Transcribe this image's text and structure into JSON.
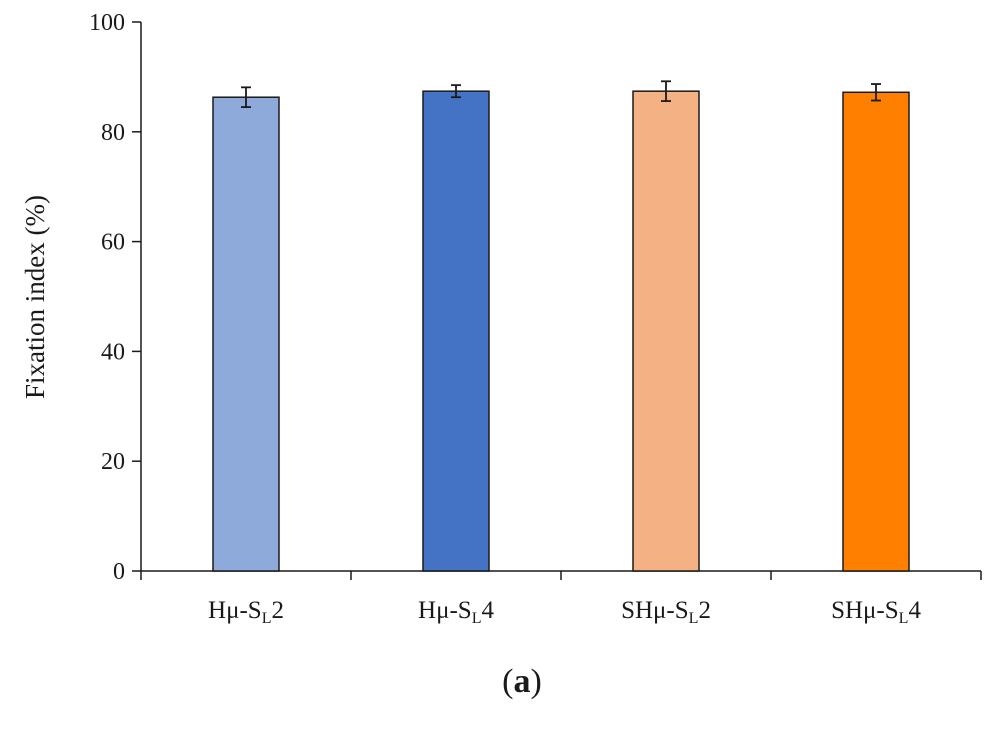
{
  "chart_data": {
    "type": "bar",
    "title": "",
    "xlabel": "",
    "ylabel": "Fixation index (%)",
    "ylim": [
      0,
      100
    ],
    "yticks": [
      "0",
      "20",
      "40",
      "60",
      "80",
      "100"
    ],
    "grid": false,
    "categories": [
      {
        "main": "Hμ-S",
        "sub": "L",
        "suffix": "2"
      },
      {
        "main": "Hμ-S",
        "sub": "L",
        "suffix": "4"
      },
      {
        "main": "SHμ-S",
        "sub": "L",
        "suffix": "2"
      },
      {
        "main": "SHμ-S",
        "sub": "L",
        "suffix": "4"
      }
    ],
    "values": [
      86.3,
      87.4,
      87.4,
      87.2
    ],
    "errors": [
      1.8,
      1.1,
      1.8,
      1.5
    ],
    "colors": [
      "#8eaadb",
      "#4472c4",
      "#f4b183",
      "#ff8000"
    ],
    "caption": {
      "open": "(",
      "letter": "a",
      "close": ")"
    }
  }
}
